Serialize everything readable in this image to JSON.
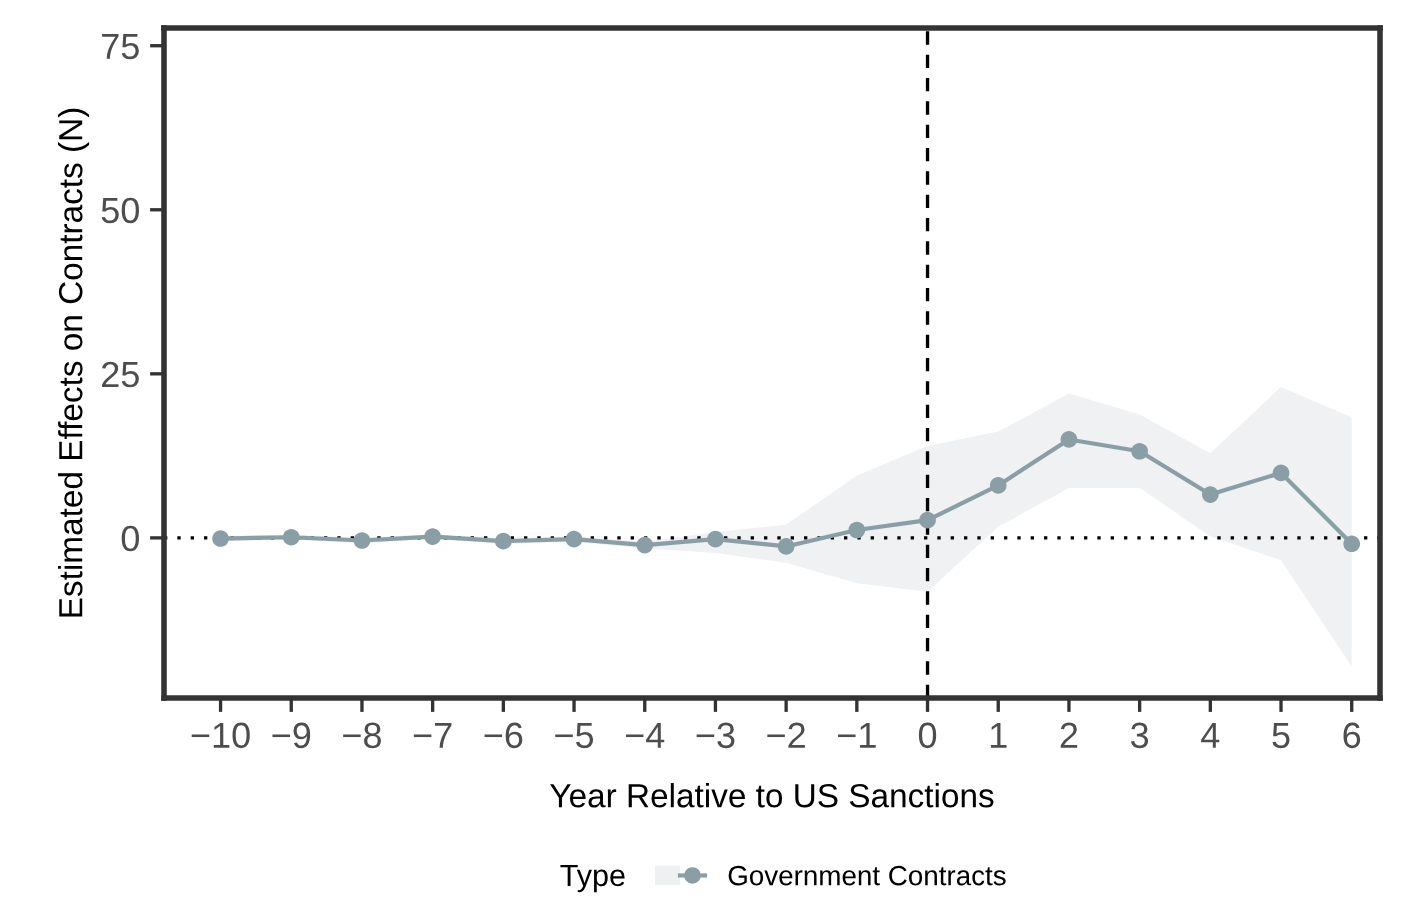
{
  "chart_data": {
    "type": "line",
    "xlabel": "Year Relative to US Sanctions",
    "ylabel": "Estimated Effects on Contracts (N)",
    "legend_title": "Type",
    "x": [
      -10,
      -9,
      -8,
      -7,
      -6,
      -5,
      -4,
      -3,
      -2,
      -1,
      0,
      1,
      2,
      3,
      4,
      5,
      6
    ],
    "series": [
      {
        "name": "Government Contracts",
        "color": "#8a9ea6",
        "values": [
          -0.1,
          0.1,
          -0.4,
          0.2,
          -0.5,
          -0.2,
          -1.1,
          -0.2,
          -1.3,
          1.2,
          2.7,
          8.0,
          15.0,
          13.2,
          6.6,
          9.9,
          -0.9
        ],
        "lower": [
          -0.5,
          -0.3,
          -0.8,
          -0.2,
          -0.9,
          -0.6,
          -1.6,
          -2.3,
          -3.8,
          -6.9,
          -8.2,
          1.7,
          7.6,
          7.6,
          0.2,
          -3.4,
          -19.6
        ],
        "upper": [
          0.3,
          0.5,
          0.0,
          0.6,
          -0.1,
          0.2,
          -0.6,
          0.9,
          2.0,
          9.5,
          14.0,
          16.2,
          22.0,
          18.8,
          12.9,
          23.0,
          18.4
        ]
      }
    ],
    "xlim": [
      -10.8,
      6.4
    ],
    "ylim": [
      -24.4,
      77.7
    ],
    "xticks": [
      {
        "value": -10,
        "label": "−10"
      },
      {
        "value": -9,
        "label": "−9"
      },
      {
        "value": -8,
        "label": "−8"
      },
      {
        "value": -7,
        "label": "−7"
      },
      {
        "value": -6,
        "label": "−6"
      },
      {
        "value": -5,
        "label": "−5"
      },
      {
        "value": -4,
        "label": "−4"
      },
      {
        "value": -3,
        "label": "−3"
      },
      {
        "value": -2,
        "label": "−2"
      },
      {
        "value": -1,
        "label": "−1"
      },
      0,
      1,
      2,
      3,
      4,
      5,
      6
    ],
    "yticks": [
      0,
      25,
      50,
      75
    ],
    "ref_lines": [
      {
        "axis": "y",
        "value": 0,
        "color": "#000000",
        "line_style": "dotted"
      },
      {
        "axis": "x",
        "value": 0,
        "color": "#000000",
        "line_style": "dashed"
      }
    ],
    "marker": "circle",
    "line_style": "solid",
    "grid": false,
    "legend": "bottom"
  }
}
